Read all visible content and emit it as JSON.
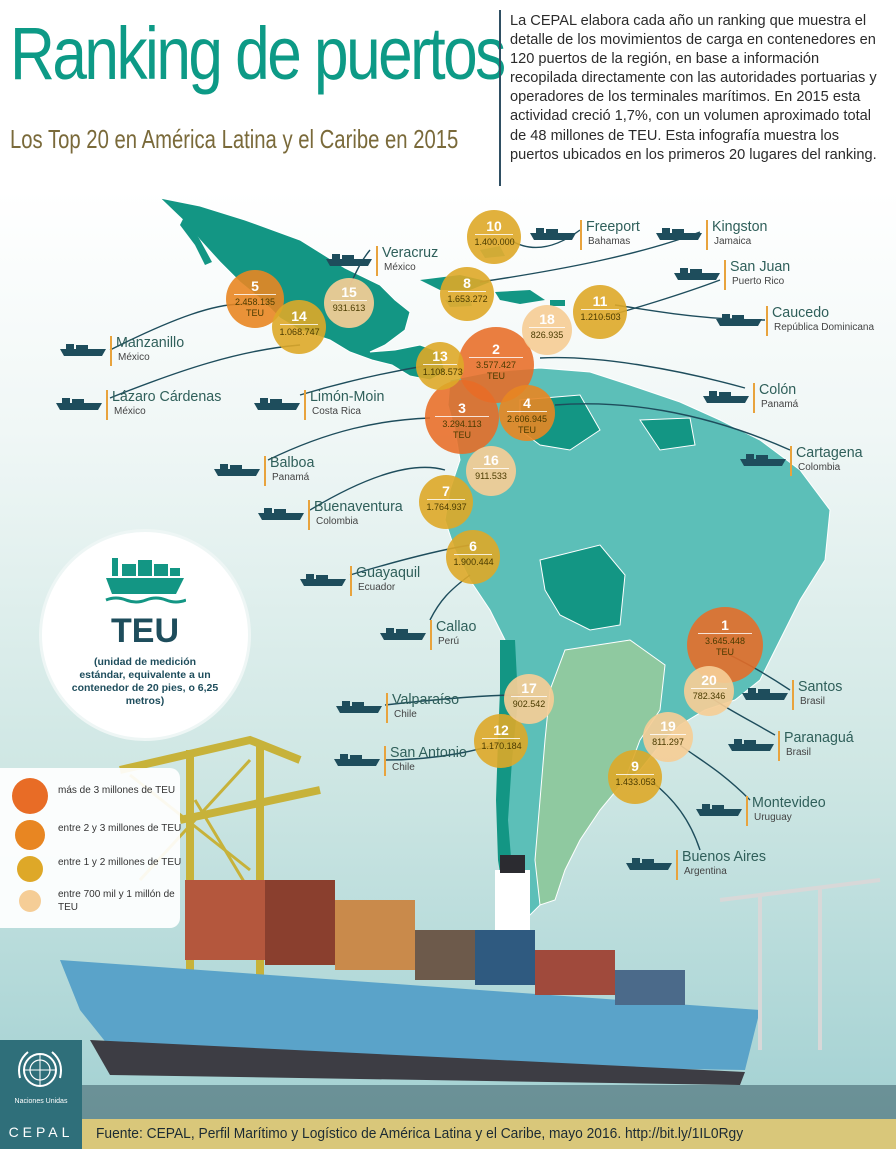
{
  "header": {
    "title": "Ranking de puertos",
    "subtitle": "Los Top 20 en América Latina y el Caribe en 2015",
    "intro": "La CEPAL elabora cada año un ranking que muestra el detalle de los movimientos de carga en contenedores en 120 puertos de la región, en base a información recopilada directamente con las autoridades portuarias y operadores de los terminales marítimos. En 2015 esta actividad creció 1,7%, con un volumen aproximado total de 48 millones de TEU. Esta infografía muestra los puertos ubicados en los primeros 20 lugares del ranking."
  },
  "colors": {
    "title_teal": "#0d9a86",
    "map_teal": "#139684",
    "map_light": "#5cbfb8",
    "over_3m": "#e86c26",
    "from_2_to_3m": "#e88622",
    "from_1_to_2m": "#dea828",
    "from_700k_to_1m": "#f5cd96"
  },
  "ports": [
    {
      "rank": "1",
      "name": "Santos",
      "country": "Brasil",
      "teu": "3.645.448",
      "unit": "TEU"
    },
    {
      "rank": "2",
      "name": "Colón",
      "country": "Panamá",
      "teu": "3.577.427",
      "unit": "TEU"
    },
    {
      "rank": "3",
      "name": "Balboa",
      "country": "Panamá",
      "teu": "3.294.113",
      "unit": "TEU"
    },
    {
      "rank": "4",
      "name": "Cartagena",
      "country": "Colombia",
      "teu": "2.606.945",
      "unit": "TEU"
    },
    {
      "rank": "5",
      "name": "Manzanillo",
      "country": "México",
      "teu": "2.458.135",
      "unit": "TEU"
    },
    {
      "rank": "6",
      "name": "Callao",
      "country": "Perú",
      "teu": "1.900.444",
      "unit": ""
    },
    {
      "rank": "7",
      "name": "Buenaventura",
      "country": "Colombia",
      "teu": "1.764.937",
      "unit": ""
    },
    {
      "rank": "8",
      "name": "Kingston",
      "country": "Jamaica",
      "teu": "1.653.272",
      "unit": ""
    },
    {
      "rank": "9",
      "name": "Buenos Aires",
      "country": "Argentina",
      "teu": "1.433.053",
      "unit": ""
    },
    {
      "rank": "10",
      "name": "Freeport",
      "country": "Bahamas",
      "teu": "1.400.000",
      "unit": ""
    },
    {
      "rank": "11",
      "name": "Caucedo",
      "country": "República Dominicana",
      "teu": "1.210.503",
      "unit": ""
    },
    {
      "rank": "12",
      "name": "San Antonio",
      "country": "Chile",
      "teu": "1.170.184",
      "unit": ""
    },
    {
      "rank": "13",
      "name": "Limón-Moin",
      "country": "Costa Rica",
      "teu": "1.108.573",
      "unit": ""
    },
    {
      "rank": "14",
      "name": "Lázaro Cárdenas",
      "country": "México",
      "teu": "1.068.747",
      "unit": ""
    },
    {
      "rank": "15",
      "name": "Veracruz",
      "country": "México",
      "teu": "931.613",
      "unit": ""
    },
    {
      "rank": "16",
      "name": "Guayaquil",
      "country": "Ecuador",
      "teu": "911.533",
      "unit": ""
    },
    {
      "rank": "17",
      "name": "Valparaíso",
      "country": "Chile",
      "teu": "902.542",
      "unit": ""
    },
    {
      "rank": "18",
      "name": "San Juan",
      "country": "Puerto Rico",
      "teu": "826.935",
      "unit": ""
    },
    {
      "rank": "19",
      "name": "Montevideo",
      "country": "Uruguay",
      "teu": "811.297",
      "unit": ""
    },
    {
      "rank": "20",
      "name": "Paranaguá",
      "country": "Brasil",
      "teu": "782.346",
      "unit": ""
    }
  ],
  "teu_box": {
    "title": "TEU",
    "description": "(unidad de medición estándar, equivalente a un contenedor de 20 pies, o 6,25 metros)"
  },
  "legend": [
    {
      "label": "más de 3 millones de TEU",
      "color": "#e86c26"
    },
    {
      "label": "entre 2 y 3 millones de TEU",
      "color": "#e88622"
    },
    {
      "label": "entre 1 y 2 millones de TEU",
      "color": "#dea828"
    },
    {
      "label": "entre 700 mil y 1 millón de TEU",
      "color": "#f5cd96"
    }
  ],
  "footer": {
    "source": "Fuente: CEPAL, Perfil Marítimo y Logístico de América Latina y el Caribe, mayo 2016. http://bit.ly/1IL0Rgy",
    "org_name": "Naciones Unidas",
    "cepal": "CEPAL"
  }
}
